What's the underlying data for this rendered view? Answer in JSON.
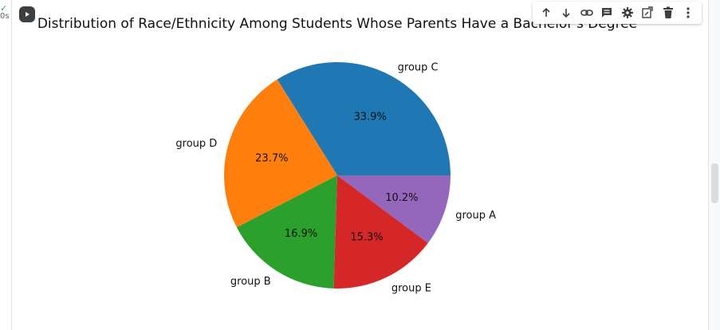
{
  "cell": {
    "exec_time": "0s",
    "run_icon": "play-icon"
  },
  "toolbar": {
    "icons": [
      "arrow-up-icon",
      "arrow-down-icon",
      "link-icon",
      "comment-icon",
      "gear-icon",
      "mirror-cell-icon",
      "trash-icon",
      "more-vert-icon"
    ]
  },
  "chart_data": {
    "type": "pie",
    "title": "Distribution of Race/Ethnicity Among Students Whose Parents Have a Bachelor's Degree",
    "labels": [
      "group C",
      "group D",
      "group B",
      "group E",
      "group A"
    ],
    "values": [
      33.9,
      23.7,
      16.9,
      15.3,
      10.2
    ],
    "pct_labels": [
      "33.9%",
      "23.7%",
      "16.9%",
      "15.3%",
      "10.2%"
    ],
    "colors": [
      "#1f77b4",
      "#ff7f0e",
      "#2ca02c",
      "#d62728",
      "#9467bd"
    ],
    "start_angle": 0,
    "direction": "counterclockwise",
    "legend": "none"
  }
}
